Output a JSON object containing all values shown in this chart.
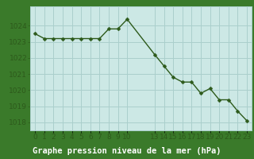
{
  "x": [
    0,
    1,
    2,
    3,
    4,
    5,
    6,
    7,
    8,
    9,
    10,
    13,
    14,
    15,
    16,
    17,
    18,
    19,
    20,
    21,
    22,
    23
  ],
  "y": [
    1023.5,
    1023.2,
    1023.2,
    1023.2,
    1023.2,
    1023.2,
    1023.2,
    1023.2,
    1023.8,
    1023.8,
    1024.4,
    1022.2,
    1021.5,
    1020.8,
    1020.5,
    1020.5,
    1019.8,
    1020.1,
    1019.4,
    1019.4,
    1018.7,
    1018.1
  ],
  "line_color": "#2d5a1b",
  "marker": "D",
  "marker_size": 2.5,
  "bg_color": "#cce8e5",
  "grid_color": "#aacfcc",
  "xlabel": "Graphe pression niveau de la mer (hPa)",
  "xlabel_color": "#ffffff",
  "xlabel_bg": "#3a7a2a",
  "ylim": [
    1017.5,
    1025.2
  ],
  "yticks": [
    1018,
    1019,
    1020,
    1021,
    1022,
    1023,
    1024
  ],
  "xtick_labels": [
    "0",
    "1",
    "2",
    "3",
    "4",
    "5",
    "6",
    "7",
    "8",
    "9",
    "10",
    "13",
    "14",
    "15",
    "16",
    "17",
    "18",
    "19",
    "20",
    "21",
    "22",
    "23"
  ],
  "tick_color": "#2d5a1b",
  "tick_fontsize": 6.5,
  "xlabel_fontsize": 7.5,
  "figsize": [
    3.2,
    2.0
  ],
  "dpi": 100
}
